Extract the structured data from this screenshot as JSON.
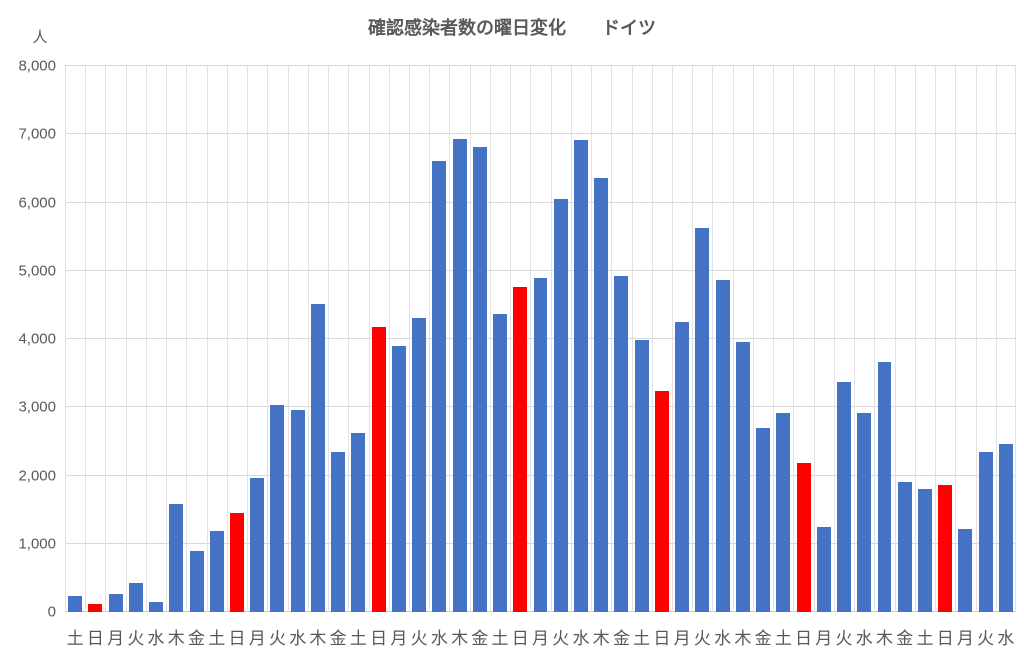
{
  "chart_data": {
    "type": "bar",
    "title": "確認感染者数の曜日変化　　ドイツ",
    "y_unit": "人",
    "ylim": [
      0,
      8000
    ],
    "y_tick_step": 1000,
    "y_tick_labels": [
      "0",
      "1,000",
      "2,000",
      "3,000",
      "4,000",
      "5,000",
      "6,000",
      "7,000",
      "8,000"
    ],
    "categories": [
      "土",
      "日",
      "月",
      "火",
      "水",
      "木",
      "金",
      "土",
      "日",
      "月",
      "火",
      "水",
      "木",
      "金",
      "土",
      "日",
      "月",
      "火",
      "水",
      "木",
      "金",
      "土",
      "日",
      "月",
      "火",
      "水",
      "木",
      "金",
      "土",
      "日",
      "月",
      "火",
      "水",
      "木",
      "金",
      "土",
      "日",
      "月",
      "火",
      "水",
      "木",
      "金",
      "土",
      "日",
      "月",
      "火",
      "水"
    ],
    "values": [
      230,
      120,
      260,
      430,
      150,
      1580,
      890,
      1190,
      1450,
      1960,
      3040,
      2960,
      4510,
      2340,
      2630,
      4170,
      3900,
      4310,
      6610,
      6930,
      6820,
      4370,
      4760,
      4890,
      6050,
      6910,
      6360,
      4920,
      3990,
      3240,
      4250,
      5620,
      4870,
      3960,
      2700,
      2910,
      2190,
      1250,
      3370,
      2920,
      3670,
      1910,
      1800,
      1860,
      1220,
      2340,
      2460
    ],
    "highlight_indices": [
      1,
      8,
      15,
      22,
      29,
      36,
      43
    ],
    "highlight_day": "日",
    "colors": {
      "bar_default": "#4472C4",
      "bar_highlight": "#FF0000",
      "gridline": "#D9D9D9",
      "axis_text": "#595959"
    },
    "grid": "both",
    "legend": "none"
  }
}
